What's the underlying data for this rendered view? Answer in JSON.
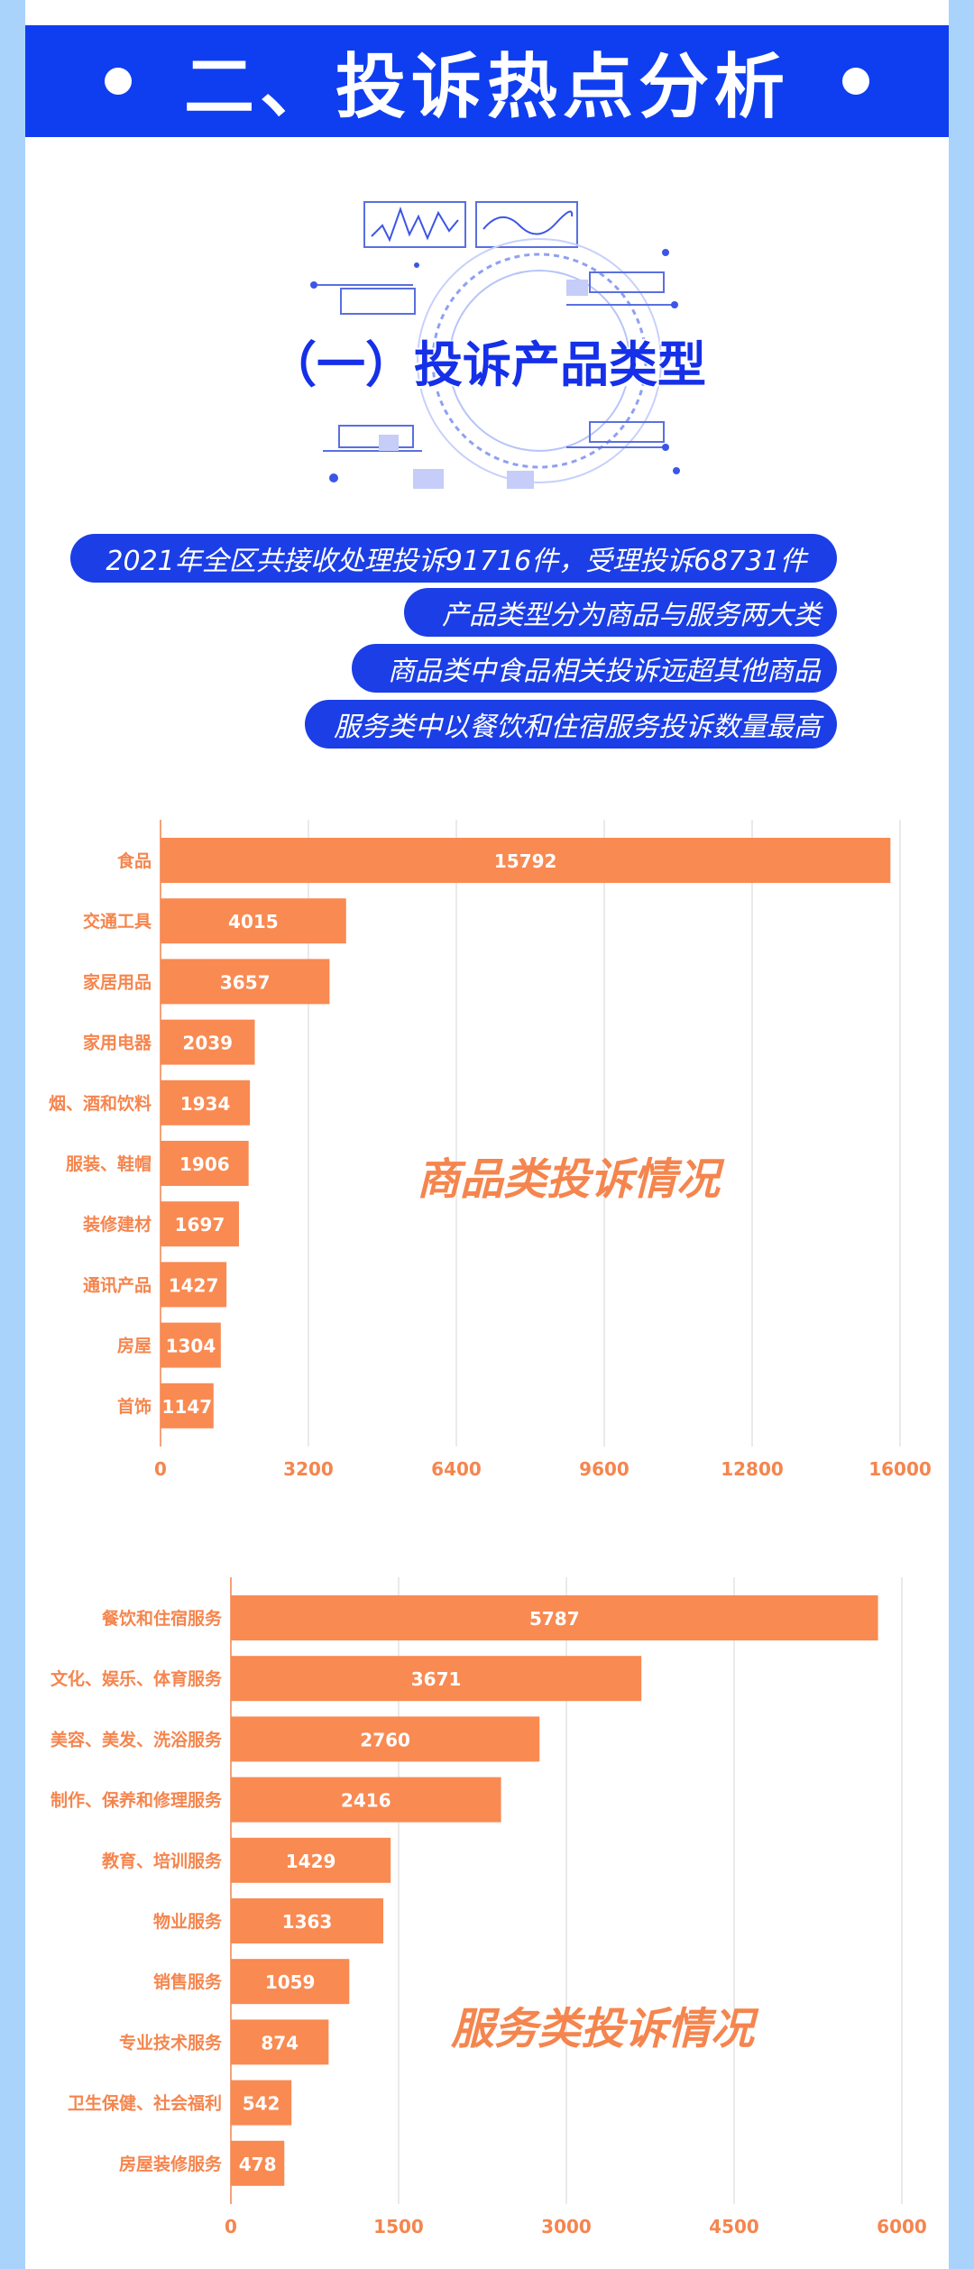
{
  "header": {
    "title": "二、投诉热点分析"
  },
  "section": {
    "subtitle": "（一）投诉产品类型"
  },
  "highlights": [
    "2021年全区共接收处理投诉91716件，受理投诉68731件",
    "产品类型分为商品与服务两大类",
    "商品类中食品相关投诉远超其他商品",
    "服务类中以餐饮和住宿服务投诉数量最高"
  ],
  "colors": {
    "header_bg": "#0f3ef0",
    "pill_bg": "#1b3ee6",
    "bar": "#f98a52",
    "axis_text": "#f5854e",
    "side_bg": "#a9d3fb"
  },
  "chart_data": [
    {
      "type": "bar",
      "orientation": "horizontal",
      "title": "商品类投诉情况",
      "categories": [
        "食品",
        "交通工具",
        "家居用品",
        "家用电器",
        "烟、酒和饮料",
        "服装、鞋帽",
        "装修建材",
        "通讯产品",
        "房屋",
        "首饰"
      ],
      "values": [
        15792,
        4015,
        3657,
        2039,
        1934,
        1906,
        1697,
        1427,
        1304,
        1147
      ],
      "xlim": [
        0,
        16000
      ],
      "xticks": [
        0,
        3200,
        6400,
        9600,
        12800,
        16000
      ],
      "grid": true
    },
    {
      "type": "bar",
      "orientation": "horizontal",
      "title": "服务类投诉情况",
      "categories": [
        "餐饮和住宿服务",
        "文化、娱乐、体育服务",
        "美容、美发、洗浴服务",
        "制作、保养和修理服务",
        "教育、培训服务",
        "物业服务",
        "销售服务",
        "专业技术服务",
        "卫生保健、社会福利",
        "房屋装修服务"
      ],
      "values": [
        5787,
        3671,
        2760,
        2416,
        1429,
        1363,
        1059,
        874,
        542,
        478
      ],
      "xlim": [
        0,
        6000
      ],
      "xticks": [
        0,
        1500,
        3000,
        4500,
        6000
      ],
      "grid": true
    }
  ]
}
